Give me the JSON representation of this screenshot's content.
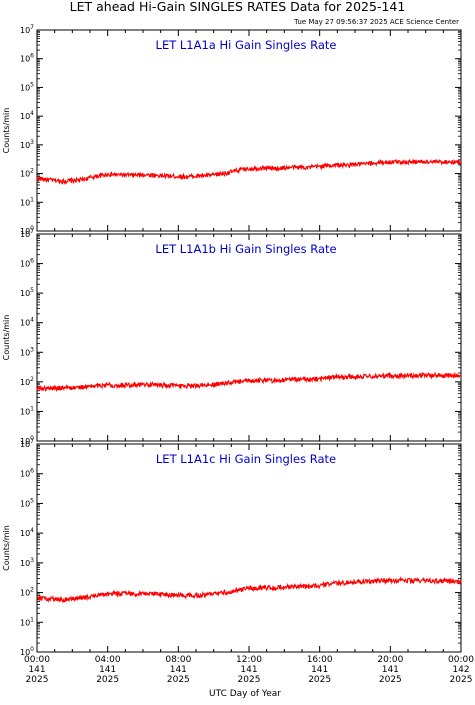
{
  "page": {
    "title": "LET ahead Hi-Gain SINGLES RATES Data for 2025-141",
    "timestamp": "Tue May 27 09:56:37 2025 ACE Science Center",
    "xlabel": "UTC Day of Year"
  },
  "colors": {
    "series": "#ff0000",
    "panel_title": "#0000cc",
    "axes": "#000000"
  },
  "chart_data": [
    {
      "type": "line",
      "title": "LET L1A1a Hi Gain Singles Rate",
      "ylabel": "Counts/min",
      "yscale": "log",
      "ylim": [
        1,
        10000000
      ],
      "ytick_base": "10",
      "ytick_exponents": [
        "0",
        "1",
        "2",
        "3",
        "4",
        "5",
        "6",
        "7"
      ],
      "xlim": [
        0,
        24
      ],
      "series": [
        {
          "x": [
            0,
            0.5,
            1,
            1.5,
            2,
            2.5,
            3,
            3.5,
            4,
            4.5,
            5,
            5.5,
            6,
            6.5,
            7,
            7.5,
            8,
            8.5,
            9,
            9.5,
            10,
            10.5,
            11,
            11.5,
            12,
            12.5,
            13,
            13.5,
            14,
            14.5,
            15,
            15.5,
            16,
            16.5,
            17,
            17.5,
            18,
            18.5,
            19,
            19.5,
            20,
            20.5,
            21,
            21.5,
            22,
            22.5,
            23,
            23.5,
            24
          ],
          "values": [
            70,
            62,
            58,
            55,
            57,
            60,
            72,
            85,
            95,
            92,
            90,
            88,
            92,
            90,
            85,
            82,
            80,
            78,
            82,
            86,
            90,
            100,
            115,
            135,
            150,
            155,
            160,
            150,
            160,
            165,
            170,
            165,
            180,
            190,
            200,
            195,
            210,
            215,
            230,
            245,
            255,
            260,
            255,
            260,
            262,
            255,
            258,
            252,
            250
          ]
        }
      ]
    },
    {
      "type": "line",
      "title": "LET L1A1b Hi Gain Singles Rate",
      "ylabel": "Counts/min",
      "yscale": "log",
      "ylim": [
        1,
        10000000
      ],
      "ytick_base": "10",
      "ytick_exponents": [
        "0",
        "1",
        "2",
        "3",
        "4",
        "5",
        "6",
        "7"
      ],
      "xlim": [
        0,
        24
      ],
      "series": [
        {
          "x": [
            0,
            0.5,
            1,
            1.5,
            2,
            2.5,
            3,
            3.5,
            4,
            4.5,
            5,
            5.5,
            6,
            6.5,
            7,
            7.5,
            8,
            8.5,
            9,
            9.5,
            10,
            10.5,
            11,
            11.5,
            12,
            12.5,
            13,
            13.5,
            14,
            14.5,
            15,
            15.5,
            16,
            16.5,
            17,
            17.5,
            18,
            18.5,
            19,
            19.5,
            20,
            20.5,
            21,
            21.5,
            22,
            22.5,
            23,
            23.5,
            24
          ],
          "values": [
            62,
            60,
            62,
            65,
            64,
            66,
            70,
            75,
            80,
            78,
            80,
            82,
            80,
            82,
            78,
            76,
            75,
            74,
            76,
            80,
            82,
            88,
            95,
            102,
            110,
            112,
            115,
            112,
            118,
            122,
            125,
            120,
            130,
            138,
            150,
            148,
            150,
            152,
            155,
            160,
            165,
            162,
            165,
            168,
            170,
            168,
            165,
            165,
            160
          ]
        }
      ]
    },
    {
      "type": "line",
      "title": "LET L1A1c Hi Gain Singles Rate",
      "ylabel": "Counts/min",
      "yscale": "log",
      "ylim": [
        1,
        10000000
      ],
      "ytick_base": "10",
      "ytick_exponents": [
        "0",
        "1",
        "2",
        "3",
        "4",
        "5",
        "6",
        "7"
      ],
      "xlim": [
        0,
        24
      ],
      "series": [
        {
          "x": [
            0,
            0.5,
            1,
            1.5,
            2,
            2.5,
            3,
            3.5,
            4,
            4.5,
            5,
            5.5,
            6,
            6.5,
            7,
            7.5,
            8,
            8.5,
            9,
            9.5,
            10,
            10.5,
            11,
            11.5,
            12,
            12.5,
            13,
            13.5,
            14,
            14.5,
            15,
            15.5,
            16,
            16.5,
            17,
            17.5,
            18,
            18.5,
            19,
            19.5,
            20,
            20.5,
            21,
            21.5,
            22,
            22.5,
            23,
            23.5,
            24
          ],
          "values": [
            68,
            62,
            60,
            58,
            62,
            66,
            72,
            82,
            92,
            92,
            95,
            92,
            95,
            92,
            88,
            85,
            82,
            80,
            82,
            85,
            90,
            100,
            112,
            125,
            140,
            145,
            150,
            145,
            155,
            160,
            165,
            160,
            175,
            190,
            215,
            210,
            230,
            235,
            245,
            250,
            255,
            258,
            255,
            252,
            255,
            250,
            248,
            245,
            240
          ]
        }
      ]
    }
  ],
  "x_axis": {
    "ticks": [
      {
        "hour": 0,
        "time": "00:00",
        "doy": "141",
        "year": "2025"
      },
      {
        "hour": 4,
        "time": "04:00",
        "doy": "141",
        "year": "2025"
      },
      {
        "hour": 8,
        "time": "08:00",
        "doy": "141",
        "year": "2025"
      },
      {
        "hour": 12,
        "time": "12:00",
        "doy": "141",
        "year": "2025"
      },
      {
        "hour": 16,
        "time": "16:00",
        "doy": "141",
        "year": "2025"
      },
      {
        "hour": 20,
        "time": "20:00",
        "doy": "141",
        "year": "2025"
      },
      {
        "hour": 24,
        "time": "00:00",
        "doy": "142",
        "year": "2025"
      }
    ]
  }
}
